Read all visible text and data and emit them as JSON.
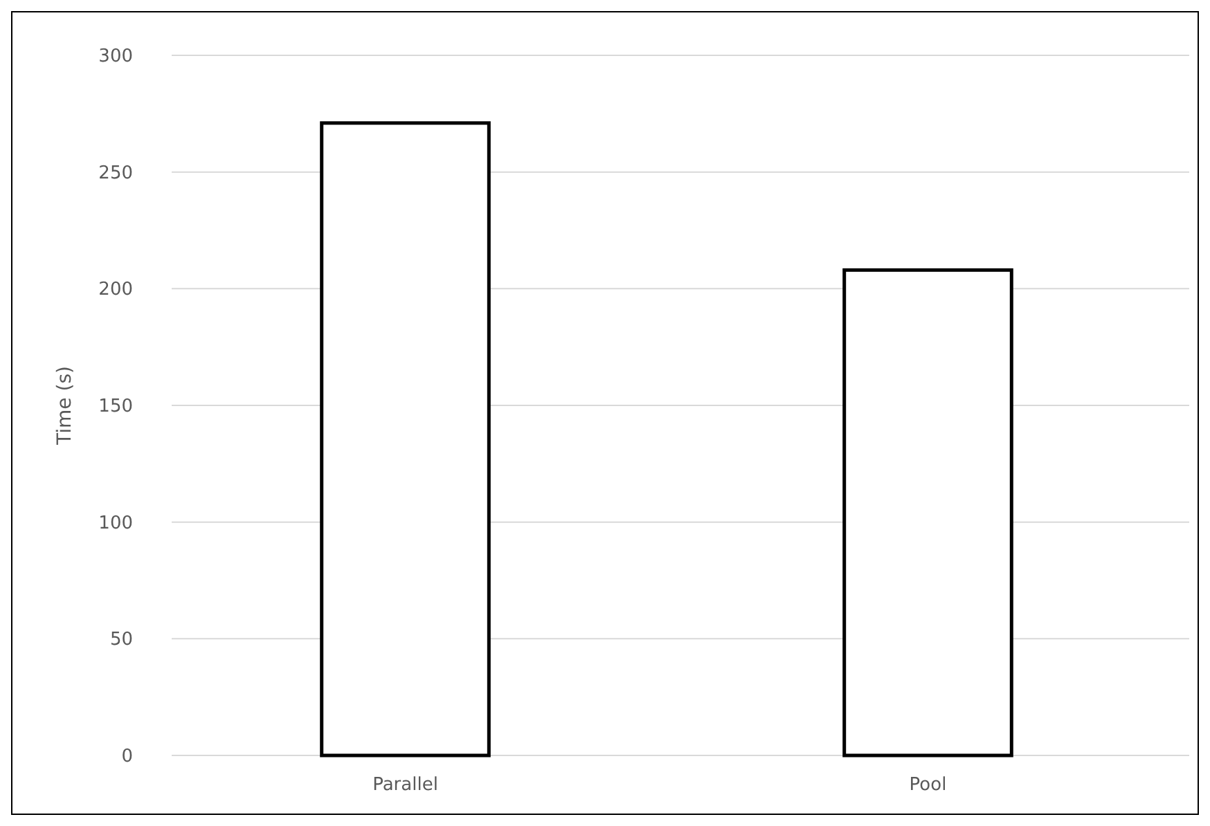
{
  "chart_data": {
    "type": "bar",
    "ylabel": "Time (s)",
    "categories": [
      "Parallel",
      "Pool"
    ],
    "series": [
      {
        "color": "#ffffff",
        "values": [
          271,
          208
        ]
      }
    ],
    "ylim": [
      0,
      300
    ],
    "yticks": [
      0,
      50,
      100,
      150,
      200,
      250,
      300
    ],
    "grid": "y"
  }
}
